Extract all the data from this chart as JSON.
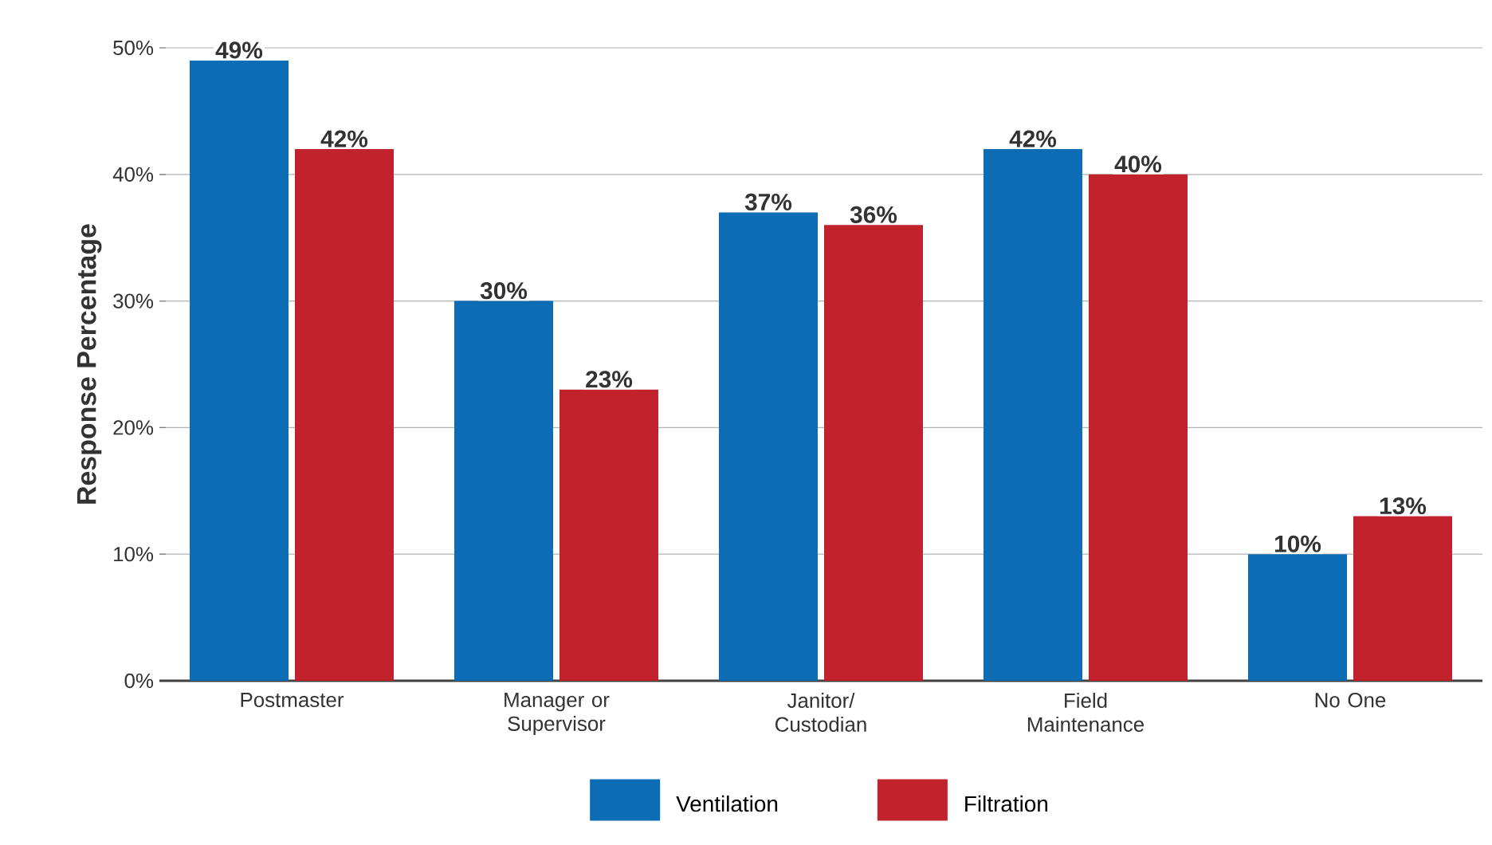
{
  "chart_data": {
    "type": "bar",
    "ylabel": "Response Percentage",
    "categories": [
      "Postmaster",
      "Manager or Supervisor",
      "Janitor/ Custodian",
      "Field Maintenance",
      "No One"
    ],
    "series": [
      {
        "name": "Ventilation",
        "color": "#0c6db5",
        "values": [
          49,
          30,
          37,
          42,
          10
        ],
        "value_labels": [
          "49%",
          "30%",
          "37%",
          "42%",
          "10%"
        ]
      },
      {
        "name": "Filtration",
        "color": "#c1222b",
        "values": [
          42,
          23,
          36,
          40,
          13
        ],
        "value_labels": [
          "42%",
          "23%",
          "36%",
          "40%",
          "13%"
        ]
      }
    ],
    "ylim": [
      0,
      50
    ],
    "yticks": [
      {
        "value": 0,
        "label": "0%"
      },
      {
        "value": 10,
        "label": "10%"
      },
      {
        "value": 20,
        "label": "20%"
      },
      {
        "value": 30,
        "label": "30%"
      },
      {
        "value": 40,
        "label": "40%"
      },
      {
        "value": 50,
        "label": "50%"
      }
    ],
    "grid": "y",
    "legend": "bottom"
  }
}
